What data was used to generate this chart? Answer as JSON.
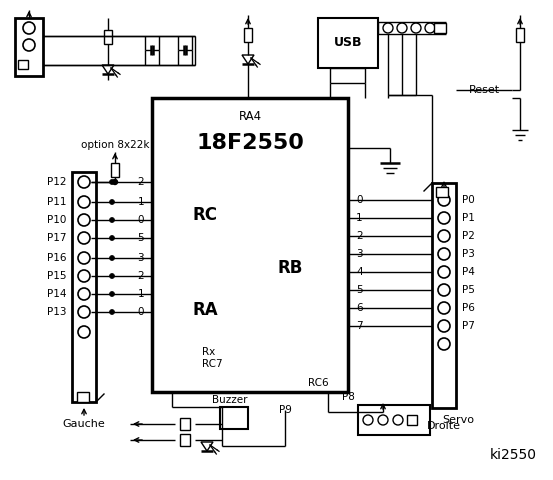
{
  "title": "ki2550",
  "bg_color": "#ffffff",
  "chip_label": "18F2550",
  "chip_sublabel": "RA4",
  "rc_label": "RC",
  "ra_label": "RA",
  "rb_label": "RB",
  "left_pins_labels": [
    "P12",
    "P11",
    "P10",
    "P17",
    "P16",
    "P15",
    "P14",
    "P13"
  ],
  "left_pins_numbers": [
    "2",
    "1",
    "0",
    "5",
    "3",
    "2",
    "1",
    "0"
  ],
  "right_pins_labels": [
    "P0",
    "P1",
    "P2",
    "P3",
    "P4",
    "P5",
    "P6",
    "P7"
  ],
  "right_pins_numbers": [
    "0",
    "1",
    "2",
    "3",
    "4",
    "5",
    "6",
    "7"
  ],
  "gauche_label": "Gauche",
  "droite_label": "Droite",
  "rc7_label": "Rx\nRC7",
  "rc6_label": "RC6",
  "usb_label": "USB",
  "reset_label": "Reset",
  "buzzer_label": "Buzzer",
  "servo_label": "Servo",
  "p9_label": "P9",
  "p8_label": "P8",
  "option_label": "option 8x22k"
}
